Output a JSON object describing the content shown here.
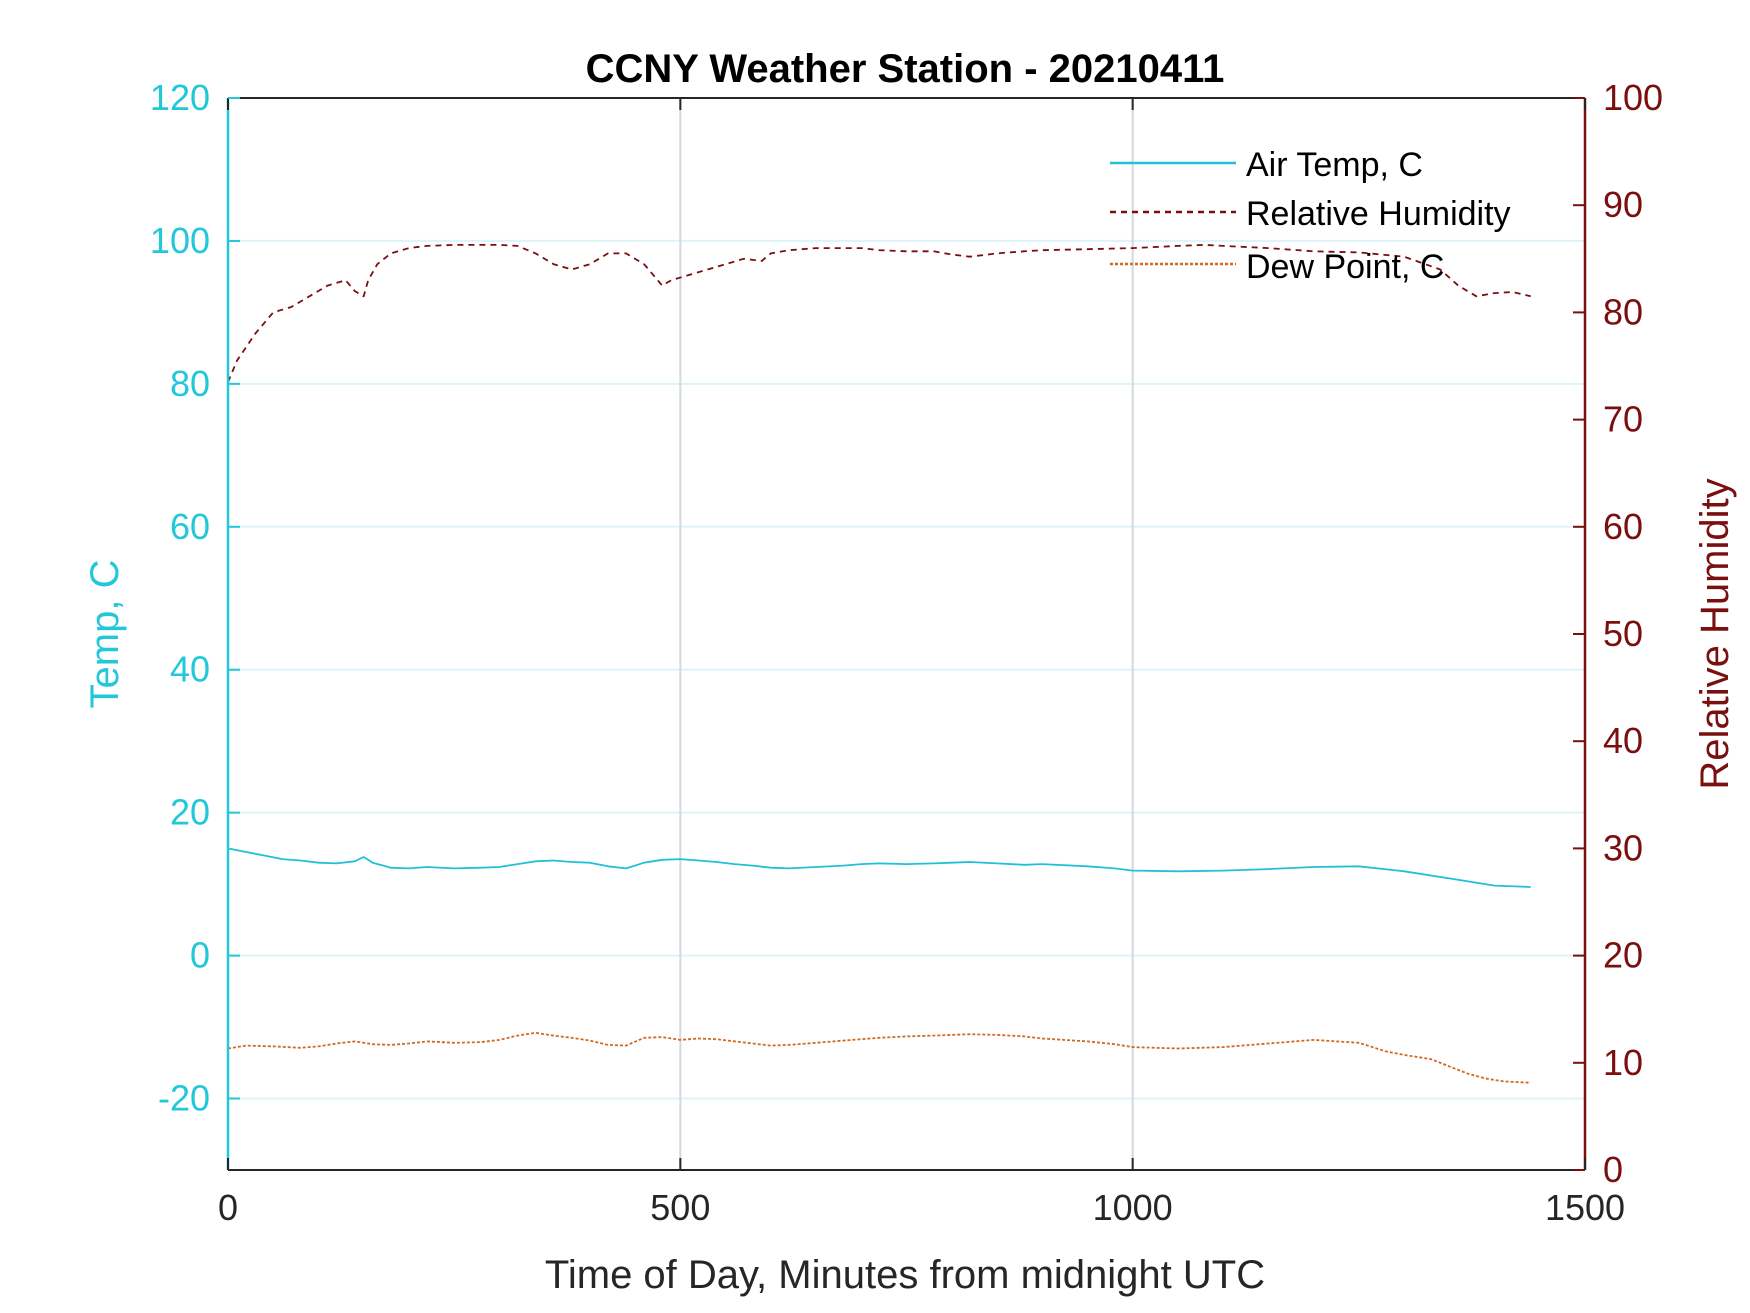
{
  "chart_data": {
    "type": "line",
    "title": "CCNY Weather Station - 20210411",
    "xlabel": "Time of Day, Minutes from midnight UTC",
    "ylabel_left": "Temp, C",
    "ylabel_right": "Relative Humidity",
    "xlim": [
      0,
      1500
    ],
    "ylim_left": [
      -30,
      120
    ],
    "ylim_right": [
      0,
      100
    ],
    "x_ticks": [
      0,
      500,
      1000,
      1500
    ],
    "y_ticks_left": [
      -20,
      0,
      20,
      40,
      60,
      80,
      100,
      120
    ],
    "y_ticks_right": [
      0,
      10,
      20,
      30,
      40,
      50,
      60,
      70,
      80,
      90,
      100
    ],
    "grid": true,
    "legend_position": "top-right",
    "colors": {
      "left_axis": "#22C7DA",
      "right_axis": "#7A0F0F",
      "air_temp": "#22C0D6",
      "relative_humidity": "#7A0F0F",
      "dew_point": "#D2691E",
      "grid_horizontal": "#DDF3F8",
      "grid_vertical": "#D3D8DC"
    },
    "series": [
      {
        "name": "Air Temp, C",
        "axis": "left",
        "style": "solid",
        "x": [
          0,
          20,
          40,
          60,
          80,
          100,
          120,
          140,
          150,
          160,
          180,
          200,
          220,
          250,
          280,
          300,
          320,
          340,
          360,
          380,
          400,
          420,
          440,
          460,
          480,
          500,
          520,
          540,
          560,
          580,
          600,
          620,
          650,
          680,
          700,
          720,
          750,
          780,
          800,
          820,
          850,
          880,
          900,
          950,
          980,
          1000,
          1050,
          1100,
          1150,
          1200,
          1250,
          1300,
          1350,
          1400,
          1440
        ],
        "y": [
          15,
          14.5,
          14,
          13.5,
          13.3,
          13,
          12.9,
          13.2,
          13.8,
          13,
          12.3,
          12.2,
          12.4,
          12.2,
          12.3,
          12.4,
          12.8,
          13.2,
          13.3,
          13.1,
          13,
          12.5,
          12.2,
          13,
          13.4,
          13.5,
          13.3,
          13.1,
          12.8,
          12.6,
          12.3,
          12.2,
          12.4,
          12.6,
          12.8,
          12.9,
          12.8,
          12.9,
          13,
          13.1,
          12.9,
          12.7,
          12.8,
          12.5,
          12.2,
          11.9,
          11.8,
          11.9,
          12.1,
          12.4,
          12.5,
          11.8,
          10.8,
          9.8,
          9.6
        ]
      },
      {
        "name": "Relative Humidity",
        "axis": "right",
        "style": "dashed",
        "x": [
          0,
          10,
          30,
          50,
          70,
          90,
          110,
          130,
          140,
          150,
          155,
          165,
          180,
          200,
          220,
          250,
          280,
          300,
          320,
          340,
          360,
          380,
          400,
          420,
          440,
          460,
          470,
          480,
          490,
          510,
          530,
          550,
          570,
          590,
          600,
          620,
          650,
          680,
          700,
          720,
          750,
          780,
          800,
          820,
          850,
          880,
          900,
          950,
          1000,
          1050,
          1080,
          1100,
          1150,
          1200,
          1250,
          1300,
          1340,
          1360,
          1380,
          1400,
          1420,
          1440
        ],
        "y": [
          73.5,
          75.5,
          78,
          80,
          80.5,
          81.5,
          82.5,
          83,
          82,
          81.5,
          83,
          84.5,
          85.5,
          86,
          86.2,
          86.3,
          86.3,
          86.3,
          86.2,
          85.5,
          84.5,
          84,
          84.5,
          85.5,
          85.5,
          84.5,
          83.5,
          82.5,
          83,
          83.5,
          84,
          84.5,
          85,
          84.8,
          85.5,
          85.8,
          86,
          86,
          86,
          85.8,
          85.7,
          85.7,
          85.4,
          85.2,
          85.5,
          85.7,
          85.8,
          85.9,
          86,
          86.2,
          86.3,
          86.2,
          86,
          85.7,
          85.6,
          85.2,
          84,
          82.5,
          81.5,
          81.8,
          81.9,
          81.5
        ]
      },
      {
        "name": "Dew Point, C",
        "axis": "left",
        "style": "dashdot",
        "x": [
          0,
          20,
          50,
          80,
          100,
          120,
          140,
          160,
          180,
          200,
          220,
          250,
          280,
          300,
          320,
          340,
          360,
          380,
          400,
          420,
          440,
          460,
          480,
          500,
          520,
          540,
          560,
          580,
          600,
          620,
          650,
          680,
          700,
          720,
          750,
          780,
          800,
          820,
          850,
          880,
          900,
          950,
          980,
          1000,
          1050,
          1100,
          1150,
          1200,
          1250,
          1280,
          1300,
          1330,
          1350,
          1370,
          1390,
          1410,
          1440
        ],
        "y": [
          -13,
          -12.6,
          -12.7,
          -12.9,
          -12.7,
          -12.3,
          -12,
          -12.4,
          -12.5,
          -12.3,
          -12,
          -12.2,
          -12.1,
          -11.8,
          -11.2,
          -10.8,
          -11.2,
          -11.5,
          -11.9,
          -12.5,
          -12.6,
          -11.5,
          -11.4,
          -11.8,
          -11.6,
          -11.7,
          -12,
          -12.3,
          -12.6,
          -12.5,
          -12.2,
          -11.9,
          -11.7,
          -11.5,
          -11.3,
          -11.2,
          -11.1,
          -11,
          -11.1,
          -11.3,
          -11.6,
          -12,
          -12.4,
          -12.8,
          -13,
          -12.8,
          -12.3,
          -11.8,
          -12.2,
          -13.4,
          -13.9,
          -14.5,
          -15.5,
          -16.5,
          -17.2,
          -17.6,
          -17.8
        ]
      }
    ]
  }
}
